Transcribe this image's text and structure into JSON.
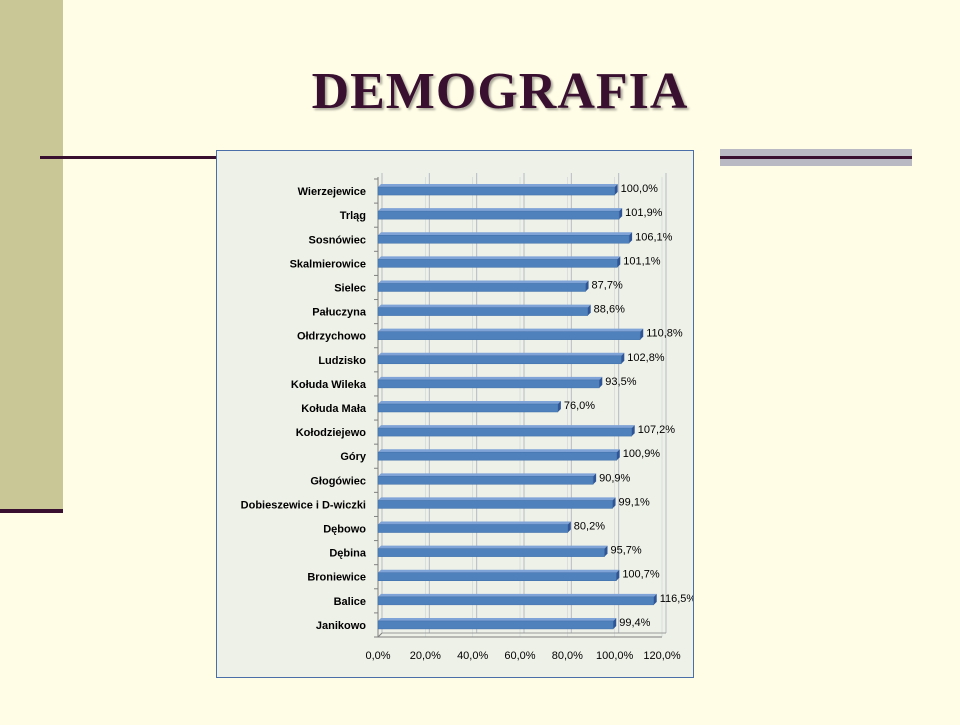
{
  "page_title": "DEMOGRAFIA",
  "colors": {
    "bar": "#4f81bd",
    "bar_top": "#7fa3d6",
    "bar_side": "#2f5597",
    "title": "#3a1030",
    "accent_stripe": "#c9c796"
  },
  "chart_data": {
    "type": "bar",
    "orientation": "horizontal",
    "title": "",
    "xlabel": "",
    "ylabel": "",
    "xlim": [
      0,
      120
    ],
    "xticks": [
      "0,0%",
      "20,0%",
      "40,0%",
      "60,0%",
      "80,0%",
      "100,0%",
      "120,0%"
    ],
    "grid": true,
    "categories": [
      "Wierzejewice",
      "Trląg",
      "Sosnówiec",
      "Skalmierowice",
      "Sielec",
      "Pałuczyna",
      "Ołdrzychowo",
      "Ludzisko",
      "Kołuda Wileka",
      "Kołuda Mała",
      "Kołodziejewo",
      "Góry",
      "Głogówiec",
      "Dobieszewice i  D-wiczki",
      "Dębowo",
      "Dębina",
      "Broniewice",
      "Balice",
      "Janikowo"
    ],
    "values": [
      100.0,
      101.9,
      106.1,
      101.1,
      87.7,
      88.6,
      110.8,
      102.8,
      93.5,
      76.0,
      107.2,
      100.9,
      90.9,
      99.1,
      80.2,
      95.7,
      100.7,
      116.5,
      99.4
    ],
    "data_labels": [
      "100,0%",
      "101,9%",
      "106,1%",
      "101,1%",
      "87,7%",
      "88,6%",
      "110,8%",
      "102,8%",
      "93,5%",
      "76,0%",
      "107,2%",
      "100,9%",
      "90,9%",
      "99,1%",
      "80,2%",
      "95,7%",
      "100,7%",
      "116,5%",
      "99,4%"
    ]
  }
}
